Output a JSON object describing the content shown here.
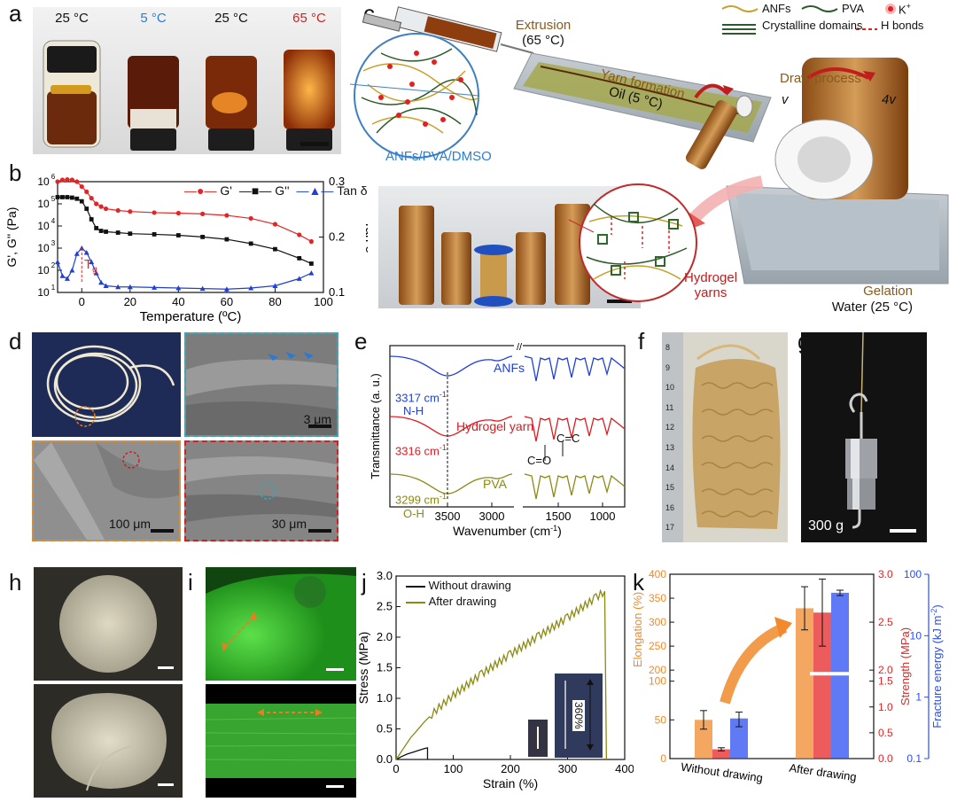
{
  "panels": {
    "a": {
      "label": "a",
      "vial_temps": [
        "25 °C",
        "5 °C",
        "25 °C",
        "65 °C"
      ],
      "temp_colors": [
        "#111111",
        "#2a7fd4",
        "#111111",
        "#c62828"
      ]
    },
    "b": {
      "label": "b",
      "legend": [
        "G'",
        "G''",
        "Tan δ"
      ],
      "tg_label": "T",
      "tg_sub": "g"
    },
    "c": {
      "label": "c",
      "legend_items": [
        "ANFs",
        "PVA",
        "K",
        "Crystalline domains",
        "H bonds"
      ],
      "legend_sup": "+",
      "extrusion_title": "Extrusion",
      "extrusion_temp": "(65 °C)",
      "yarn_formation_title": "Yarn formation",
      "yarn_formation_temp": "Oil (5 °C)",
      "draw_process": "Draw process",
      "v1": "v",
      "v2": "4v",
      "solution": "ANFs/PVA/DMSO",
      "hydrogel_yarns_1": "Hydrogel",
      "hydrogel_yarns_2": "yarns",
      "gelation": "Gelation",
      "gelation_temp": "Water (25 °C)"
    },
    "d": {
      "label": "d",
      "scale_1": "3 μm",
      "scale_2": "100 μm",
      "scale_3": "30 μm"
    },
    "e": {
      "label": "e",
      "curve_labels": [
        "ANFs",
        "Hydrogel yarn",
        "PVA"
      ],
      "curve_colors": [
        "#1f3fd6",
        "#e0191f",
        "#8a8a12"
      ],
      "peaks": [
        "3317 cm",
        "3316 cm",
        "3299 cm"
      ],
      "peak_sup": "-1",
      "bond_nh": "N-H",
      "bond_oh": "O-H",
      "bond_co": "C=O",
      "bond_cc": "C=C"
    },
    "f": {
      "label": "f",
      "ruler_ticks": [
        "8",
        "9",
        "10",
        "11",
        "12",
        "13",
        "14",
        "15",
        "16",
        "17"
      ]
    },
    "g": {
      "label": "g",
      "weight": "300 g"
    },
    "h": {
      "label": "h"
    },
    "i": {
      "label": "i"
    },
    "j": {
      "label": "j",
      "legend": [
        "Without drawing",
        "After drawing"
      ],
      "inset_label": "360%"
    },
    "k": {
      "label": "k",
      "categories": [
        "Without drawing",
        "After drawing"
      ]
    }
  },
  "chart_data": [
    {
      "panel": "b",
      "type": "line",
      "xlabel": "Temperature (ºC)",
      "ylabel": "G', G'' (Pa)",
      "y2label": "Tan δ",
      "xlim": [
        -10,
        100
      ],
      "ylim_log": [
        1,
        6
      ],
      "y2lim": [
        0.1,
        0.3
      ],
      "xticks": [
        "0",
        "20",
        "40",
        "60",
        "80",
        "100"
      ],
      "yticks": [
        "10",
        "10",
        "10",
        "10",
        "10",
        "10"
      ],
      "ytick_exp": [
        "1",
        "2",
        "3",
        "4",
        "5",
        "6"
      ],
      "y2ticks": [
        "0.1",
        "0.2",
        "0.3"
      ],
      "tg_x": 0,
      "series": [
        {
          "name": "G'",
          "color": "#e52525",
          "marker": "circle",
          "x": [
            -10,
            -8,
            -6,
            -4,
            -2,
            0,
            2,
            4,
            6,
            8,
            10,
            15,
            20,
            30,
            40,
            50,
            60,
            70,
            80,
            90,
            95
          ],
          "y": [
            1000000,
            1200000,
            1250000,
            1200000,
            1000000,
            600000,
            350000,
            180000,
            100000,
            75000,
            60000,
            50000,
            45000,
            40000,
            38000,
            35000,
            30000,
            22000,
            12000,
            4000,
            2000
          ]
        },
        {
          "name": "G''",
          "color": "#111111",
          "marker": "square",
          "x": [
            -10,
            -8,
            -6,
            -4,
            -2,
            0,
            2,
            4,
            6,
            8,
            10,
            15,
            20,
            30,
            40,
            50,
            60,
            70,
            80,
            90,
            95
          ],
          "y": [
            200000,
            200000,
            200000,
            190000,
            170000,
            130000,
            60000,
            20000,
            8000,
            6000,
            5500,
            5000,
            4500,
            4200,
            3800,
            3200,
            2500,
            1600,
            900,
            350,
            200
          ]
        },
        {
          "name": "Tan δ",
          "color": "#1f3fd6",
          "marker": "triangle",
          "axis": "y2",
          "x": [
            -10,
            -8,
            -6,
            -4,
            -2,
            0,
            2,
            4,
            6,
            8,
            10,
            15,
            20,
            30,
            40,
            50,
            60,
            70,
            80,
            90,
            95
          ],
          "y": [
            0.155,
            0.13,
            0.125,
            0.14,
            0.17,
            0.18,
            0.172,
            0.155,
            0.135,
            0.118,
            0.112,
            0.11,
            0.11,
            0.109,
            0.108,
            0.107,
            0.106,
            0.108,
            0.112,
            0.125,
            0.135
          ]
        }
      ]
    },
    {
      "panel": "e",
      "type": "line",
      "xlabel": "Wavenumber (cm",
      "xlabel_sup": "-1",
      "xlabel_end": ")",
      "ylabel": "Transmittance (a. u.)",
      "xticks": [
        "3500",
        "3000",
        "1500",
        "1000"
      ],
      "x_break": true
    },
    {
      "panel": "j",
      "type": "line",
      "xlabel": "Strain (%)",
      "ylabel": "Stress (MPa)",
      "xlim": [
        0,
        400
      ],
      "ylim": [
        0,
        3.0
      ],
      "xticks": [
        "0",
        "100",
        "200",
        "300",
        "400"
      ],
      "yticks": [
        "0.0",
        "0.5",
        "1.0",
        "1.5",
        "2.0",
        "2.5",
        "3.0"
      ],
      "series": [
        {
          "name": "Without drawing",
          "color": "#111111",
          "x": [
            0,
            10,
            20,
            30,
            40,
            50,
            55,
            55
          ],
          "y": [
            0,
            0.05,
            0.09,
            0.12,
            0.15,
            0.18,
            0.19,
            0
          ]
        },
        {
          "name": "After drawing",
          "color": "#8a8a12",
          "x": [
            0,
            25,
            50,
            75,
            100,
            150,
            200,
            250,
            300,
            350,
            365,
            368
          ],
          "y": [
            0,
            0.35,
            0.62,
            0.85,
            1.05,
            1.4,
            1.72,
            2.02,
            2.32,
            2.65,
            2.75,
            0
          ]
        }
      ]
    },
    {
      "panel": "k",
      "type": "bar",
      "categories": [
        "Without drawing",
        "After drawing"
      ],
      "series": [
        {
          "name": "Elongation (%)",
          "color": "#f08a2c",
          "axis": "left",
          "values": [
            50,
            329
          ],
          "errors": [
            12,
            45
          ]
        },
        {
          "name": "Strength (MPa)",
          "color": "#e52525",
          "axis": "middle",
          "values": [
            0.18,
            2.6
          ],
          "errors": [
            0.03,
            0.35
          ]
        },
        {
          "name": "Fracture energy (kJ m",
          "name_sup": "-2",
          "name_end": ")",
          "color": "#2a4df0",
          "axis": "right",
          "values": [
            0.45,
            50
          ],
          "errors": [
            0.12,
            5
          ]
        }
      ],
      "left_ticks": [
        "0",
        "50",
        "100",
        "150",
        "200",
        "250",
        "300",
        "350",
        "400"
      ],
      "middle_ticks": [
        "0.0",
        "0.5",
        "1.0",
        "1.5",
        "2.0",
        "2.5",
        "3.0"
      ],
      "right_ticks": [
        "0.1",
        "1",
        "10",
        "100"
      ]
    }
  ]
}
